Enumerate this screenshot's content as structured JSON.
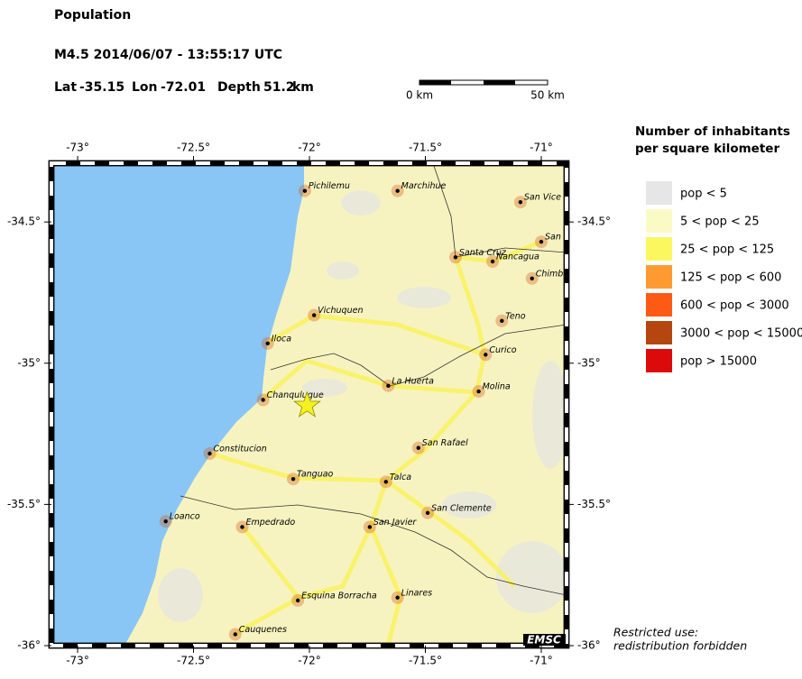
{
  "header": {
    "title": "Population",
    "event": "M4.5  2014/06/07 - 13:55:17 UTC",
    "lat_label": "Lat",
    "lat": -35.15,
    "lon_label": "Lon",
    "lon": -72.01,
    "depth_label": "Depth",
    "depth": 51.2,
    "depth_unit": "km"
  },
  "scale": {
    "start": "0 km",
    "end": "50 km"
  },
  "map": {
    "lonlim": [
      -73.113,
      -70.891
    ],
    "latlim": [
      -36,
      -34.292
    ],
    "lonticks": [
      {
        "value": -73,
        "label": "-73°"
      },
      {
        "value": -72.5,
        "label": "-72.5°"
      },
      {
        "value": -72,
        "label": "-72°"
      },
      {
        "value": -71.5,
        "label": "-71.5°"
      },
      {
        "value": -71,
        "label": "-71°"
      }
    ],
    "latticks": [
      {
        "value": -34.5,
        "label": "-34.5°"
      },
      {
        "value": -35,
        "label": "-35°"
      },
      {
        "value": -35.5,
        "label": "-35.5°"
      },
      {
        "value": -36,
        "label": "-36°"
      }
    ],
    "cities": [
      {
        "name": "Pichilemu",
        "lon": -72.02,
        "lat": -34.39
      },
      {
        "name": "Marchihue",
        "lon": -71.62,
        "lat": -34.39
      },
      {
        "name": "San Vice",
        "lon": -71.09,
        "lat": -34.43
      },
      {
        "name": "San",
        "lon": -71.0,
        "lat": -34.57
      },
      {
        "name": "Santa Cruz",
        "lon": -71.37,
        "lat": -34.625
      },
      {
        "name": "Nancagua",
        "lon": -71.21,
        "lat": -34.64
      },
      {
        "name": "Chimb",
        "lon": -71.04,
        "lat": -34.7
      },
      {
        "name": "Vichuquen",
        "lon": -71.98,
        "lat": -34.83
      },
      {
        "name": "Teno",
        "lon": -71.17,
        "lat": -34.85
      },
      {
        "name": "Iloca",
        "lon": -72.18,
        "lat": -34.93
      },
      {
        "name": "Curico",
        "lon": -71.24,
        "lat": -34.97
      },
      {
        "name": "La Huerta",
        "lon": -71.66,
        "lat": -35.08
      },
      {
        "name": "Molina",
        "lon": -71.27,
        "lat": -35.1
      },
      {
        "name": "Chanquluque",
        "lon": -72.2,
        "lat": -35.13
      },
      {
        "name": "San Rafael",
        "lon": -71.53,
        "lat": -35.3
      },
      {
        "name": "Constitucion",
        "lon": -72.43,
        "lat": -35.32
      },
      {
        "name": "Tanguao",
        "lon": -72.07,
        "lat": -35.41
      },
      {
        "name": "Talca",
        "lon": -71.67,
        "lat": -35.42
      },
      {
        "name": "San Clemente",
        "lon": -71.49,
        "lat": -35.53
      },
      {
        "name": "Loanco",
        "lon": -72.62,
        "lat": -35.56
      },
      {
        "name": "Empedrado",
        "lon": -72.29,
        "lat": -35.58
      },
      {
        "name": "San Javier",
        "lon": -71.74,
        "lat": -35.58
      },
      {
        "name": "Esquina Borracha",
        "lon": -72.05,
        "lat": -35.84
      },
      {
        "name": "Linares",
        "lon": -71.62,
        "lat": -35.83
      },
      {
        "name": "Cauquenes",
        "lon": -72.32,
        "lat": -35.96
      }
    ]
  },
  "legend": {
    "title_1": "Number of inhabitants",
    "title_2": "per square kilometer",
    "entries": [
      {
        "label": "pop < 5",
        "color": "#e6e6e6"
      },
      {
        "label": "5 < pop < 25",
        "color": "#fafac4"
      },
      {
        "label": "25 < pop < 125",
        "color": "#fbf75e"
      },
      {
        "label": "125 < pop < 600",
        "color": "#fd9a32"
      },
      {
        "label": "600 < pop < 3000",
        "color": "#fd5a14"
      },
      {
        "label": "3000 < pop < 15000",
        "color": "#b5460f"
      },
      {
        "label": "pop > 15000",
        "color": "#dc0a0a"
      }
    ]
  },
  "footer": {
    "line1": "Restricted use:",
    "line2": "redistribution forbidden",
    "logo": "EMSC"
  }
}
